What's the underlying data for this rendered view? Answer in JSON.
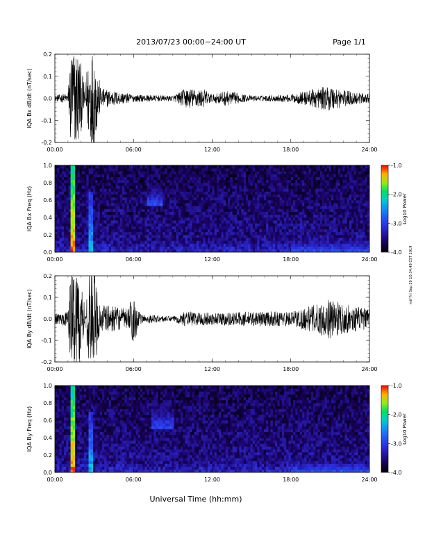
{
  "header": {
    "title": "2013/07/23  00:00−24:00 UT",
    "page": "Page 1/1"
  },
  "footer": {
    "xlabel": "Universal Time (hh:mm)",
    "side_note": "mtf Fri Sep 20 10:34:48 CST 2019"
  },
  "chart_data": [
    {
      "type": "line",
      "panel": "IQA Bx dB/dt",
      "ylabel": "IQA Bx dB/dt (nT/sec)",
      "ylim": [
        -0.2,
        0.2
      ],
      "yticks": [
        "-0.2",
        "-0.1",
        "0.0",
        "0.1",
        "0.2"
      ],
      "xlim": [
        "00:00",
        "24:00"
      ],
      "xticks": [
        "00:00",
        "06:00",
        "12:00",
        "18:00",
        "24:00"
      ],
      "line_color": "#000000",
      "amplitude_envelope": [
        {
          "t": "00:00",
          "amp": 0.012
        },
        {
          "t": "01:00",
          "amp": 0.02
        },
        {
          "t": "01:12",
          "amp": 0.2
        },
        {
          "t": "01:48",
          "amp": 0.2
        },
        {
          "t": "02:15",
          "amp": 0.05
        },
        {
          "t": "02:40",
          "amp": 0.2
        },
        {
          "t": "03:00",
          "amp": 0.2
        },
        {
          "t": "03:30",
          "amp": 0.04
        },
        {
          "t": "06:00",
          "amp": 0.015
        },
        {
          "t": "09:00",
          "amp": 0.01
        },
        {
          "t": "10:00",
          "amp": 0.04
        },
        {
          "t": "11:30",
          "amp": 0.035
        },
        {
          "t": "12:00",
          "amp": 0.015
        },
        {
          "t": "13:00",
          "amp": 0.03
        },
        {
          "t": "15:00",
          "amp": 0.01
        },
        {
          "t": "18:00",
          "amp": 0.015
        },
        {
          "t": "20:00",
          "amp": 0.04
        },
        {
          "t": "21:00",
          "amp": 0.05
        },
        {
          "t": "22:00",
          "amp": 0.035
        },
        {
          "t": "24:00",
          "amp": 0.015
        }
      ]
    },
    {
      "type": "heatmap",
      "panel": "IQA Bx Freq",
      "ylabel": "IQA Bx Freq (Hz)",
      "ylim": [
        0.0,
        1.0
      ],
      "yticks": [
        "0.0",
        "0.2",
        "0.4",
        "0.6",
        "0.8",
        "1.0"
      ],
      "xlim": [
        "00:00",
        "24:00"
      ],
      "xticks": [
        "00:00",
        "06:00",
        "12:00",
        "18:00",
        "24:00"
      ],
      "colorbar": {
        "label": "Log10 Power",
        "range": [
          -4.0,
          -1.0
        ],
        "ticks": [
          "-1.0",
          "-2.0",
          "-3.0",
          "-4.0"
        ]
      },
      "features": [
        {
          "t_start": "01:12",
          "t_end": "01:30",
          "max_freq_hz": 1.0,
          "peak_log10_power": -1.2
        },
        {
          "t_start": "02:35",
          "t_end": "02:55",
          "max_freq_hz": 0.7,
          "peak_log10_power": -2.3
        },
        {
          "t_start": "07:00",
          "t_end": "08:15",
          "min_freq_hz": 0.55,
          "max_freq_hz": 0.8,
          "peak_log10_power": -2.9
        },
        {
          "t_start": "18:00",
          "t_end": "24:00",
          "max_freq_hz": 0.15,
          "peak_log10_power": -2.8
        }
      ]
    },
    {
      "type": "line",
      "panel": "IQA By dB/dt",
      "ylabel": "IQA By dB/dt (nT/sec)",
      "ylim": [
        -0.2,
        0.2
      ],
      "yticks": [
        "-0.2",
        "-0.1",
        "0.0",
        "0.1",
        "0.2"
      ],
      "xlim": [
        "00:00",
        "24:00"
      ],
      "xticks": [
        "00:00",
        "06:00",
        "12:00",
        "18:00",
        "24:00"
      ],
      "line_color": "#000000",
      "amplitude_envelope": [
        {
          "t": "00:00",
          "amp": 0.02
        },
        {
          "t": "01:00",
          "amp": 0.03
        },
        {
          "t": "01:12",
          "amp": 0.2
        },
        {
          "t": "01:48",
          "amp": 0.2
        },
        {
          "t": "02:20",
          "amp": 0.06
        },
        {
          "t": "02:40",
          "amp": 0.2
        },
        {
          "t": "03:00",
          "amp": 0.2
        },
        {
          "t": "03:30",
          "amp": 0.06
        },
        {
          "t": "05:30",
          "amp": 0.04
        },
        {
          "t": "06:00",
          "amp": 0.1
        },
        {
          "t": "06:30",
          "amp": 0.02
        },
        {
          "t": "09:00",
          "amp": 0.01
        },
        {
          "t": "10:00",
          "amp": 0.03
        },
        {
          "t": "12:00",
          "amp": 0.025
        },
        {
          "t": "15:00",
          "amp": 0.03
        },
        {
          "t": "18:00",
          "amp": 0.03
        },
        {
          "t": "20:00",
          "amp": 0.06
        },
        {
          "t": "21:00",
          "amp": 0.08
        },
        {
          "t": "22:00",
          "amp": 0.06
        },
        {
          "t": "24:00",
          "amp": 0.04
        }
      ]
    },
    {
      "type": "heatmap",
      "panel": "IQA By Freq",
      "ylabel": "IQA By Freq (Hz)",
      "ylim": [
        0.0,
        1.0
      ],
      "yticks": [
        "0.0",
        "0.2",
        "0.4",
        "0.6",
        "0.8",
        "1.0"
      ],
      "xlim": [
        "00:00",
        "24:00"
      ],
      "xticks": [
        "00:00",
        "06:00",
        "12:00",
        "18:00",
        "24:00"
      ],
      "colorbar": {
        "label": "Log10 Power",
        "range": [
          -4.0,
          -1.0
        ],
        "ticks": [
          "-1.0",
          "-2.0",
          "-3.0",
          "-4.0"
        ]
      },
      "features": [
        {
          "t_start": "01:12",
          "t_end": "01:30",
          "max_freq_hz": 1.0,
          "peak_log10_power": -1.2
        },
        {
          "t_start": "02:35",
          "t_end": "02:55",
          "max_freq_hz": 0.7,
          "peak_log10_power": -2.3
        },
        {
          "t_start": "07:30",
          "t_end": "09:00",
          "min_freq_hz": 0.5,
          "max_freq_hz": 0.8,
          "peak_log10_power": -2.9
        },
        {
          "t_start": "18:00",
          "t_end": "24:00",
          "max_freq_hz": 0.15,
          "peak_log10_power": -2.8
        }
      ]
    }
  ]
}
